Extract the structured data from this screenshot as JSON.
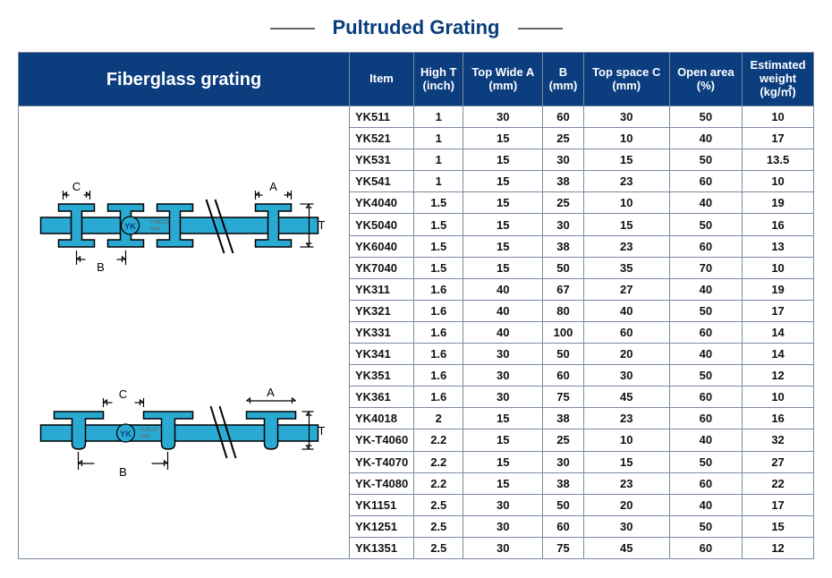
{
  "title": "Pultruded Grating",
  "left_header": "Fiberglass grating",
  "colors": {
    "header_bg": "#0b3d7f",
    "header_text": "#ffffff",
    "border": "#7a8aa0",
    "diagram_fill": "#2aa9d2",
    "diagram_stroke": "#000000",
    "logo_text": "#0b3d7f"
  },
  "columns": [
    "Item",
    "High T\n(inch)",
    "Top Wide A\n(mm)",
    "B\n(mm)",
    "Top space C\n(mm)",
    "Open area\n(%)",
    "Estimated\nweight\n(kg/㎡)"
  ],
  "rows": [
    [
      "YK511",
      "1",
      "30",
      "60",
      "30",
      "50",
      "10"
    ],
    [
      "YK521",
      "1",
      "15",
      "25",
      "10",
      "40",
      "17"
    ],
    [
      "YK531",
      "1",
      "15",
      "30",
      "15",
      "50",
      "13.5"
    ],
    [
      "YK541",
      "1",
      "15",
      "38",
      "23",
      "60",
      "10"
    ],
    [
      "YK4040",
      "1.5",
      "15",
      "25",
      "10",
      "40",
      "19"
    ],
    [
      "YK5040",
      "1.5",
      "15",
      "30",
      "15",
      "50",
      "16"
    ],
    [
      "YK6040",
      "1.5",
      "15",
      "38",
      "23",
      "60",
      "13"
    ],
    [
      "YK7040",
      "1.5",
      "15",
      "50",
      "35",
      "70",
      "10"
    ],
    [
      "YK311",
      "1.6",
      "40",
      "67",
      "27",
      "40",
      "19"
    ],
    [
      "YK321",
      "1.6",
      "40",
      "80",
      "40",
      "50",
      "17"
    ],
    [
      "YK331",
      "1.6",
      "40",
      "100",
      "60",
      "60",
      "14"
    ],
    [
      "YK341",
      "1.6",
      "30",
      "50",
      "20",
      "40",
      "14"
    ],
    [
      "YK351",
      "1.6",
      "30",
      "60",
      "30",
      "50",
      "12"
    ],
    [
      "YK361",
      "1.6",
      "30",
      "75",
      "45",
      "60",
      "10"
    ],
    [
      "YK4018",
      "2",
      "15",
      "38",
      "23",
      "60",
      "16"
    ],
    [
      "YK-T4060",
      "2.2",
      "15",
      "25",
      "10",
      "40",
      "32"
    ],
    [
      "YK-T4070",
      "2.2",
      "15",
      "30",
      "15",
      "50",
      "27"
    ],
    [
      "YK-T4080",
      "2.2",
      "15",
      "38",
      "23",
      "60",
      "22"
    ],
    [
      "YK1151",
      "2.5",
      "30",
      "50",
      "20",
      "40",
      "17"
    ],
    [
      "YK1251",
      "2.5",
      "30",
      "60",
      "30",
      "50",
      "15"
    ],
    [
      "YK1351",
      "2.5",
      "30",
      "75",
      "45",
      "60",
      "12"
    ]
  ],
  "diagram_labels": {
    "A": "A",
    "B": "B",
    "C": "C",
    "T": "T",
    "logo": "YK",
    "logo_sub": "YUKUO\nFRP"
  }
}
